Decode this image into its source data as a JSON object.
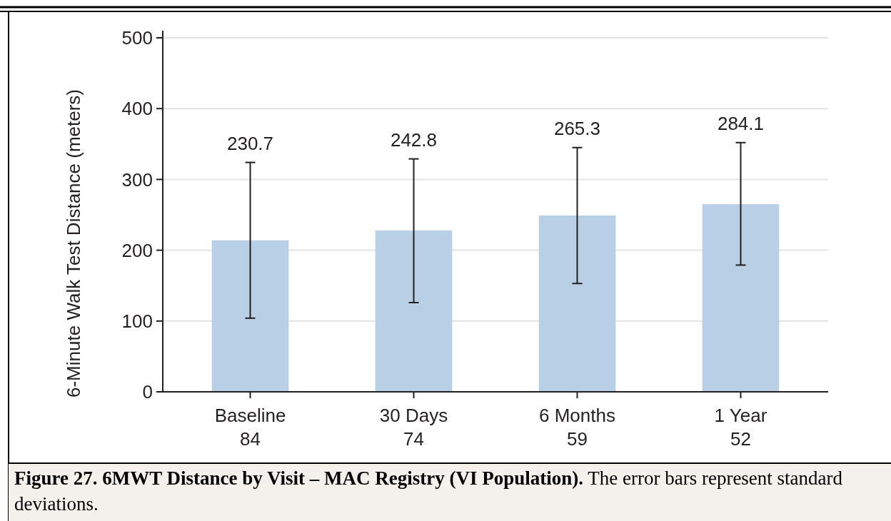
{
  "chart_data": {
    "type": "bar",
    "title": "Figure 27. 6MWT Distance by Visit – MAC Registry (VI Population).",
    "ylabel": "6-Minute Walk Test Distance (meters)",
    "categories": [
      "Baseline\n84",
      "30 Days\n74",
      "6 Months\n59",
      "1 Year\n52"
    ],
    "values": [
      214,
      228,
      249,
      265
    ],
    "errors": [
      [
        104,
        324
      ],
      [
        126,
        329
      ],
      [
        153,
        345
      ],
      [
        179,
        352
      ]
    ],
    "color": "#b9cfe5",
    "ylim": [
      0,
      500
    ],
    "yticks": [
      0,
      100,
      200,
      300,
      400,
      500
    ],
    "grid": "y",
    "annotations": [
      "230.7",
      "242.8",
      "265.3",
      "284.1",
      "The error bars represent standard deviations."
    ]
  }
}
